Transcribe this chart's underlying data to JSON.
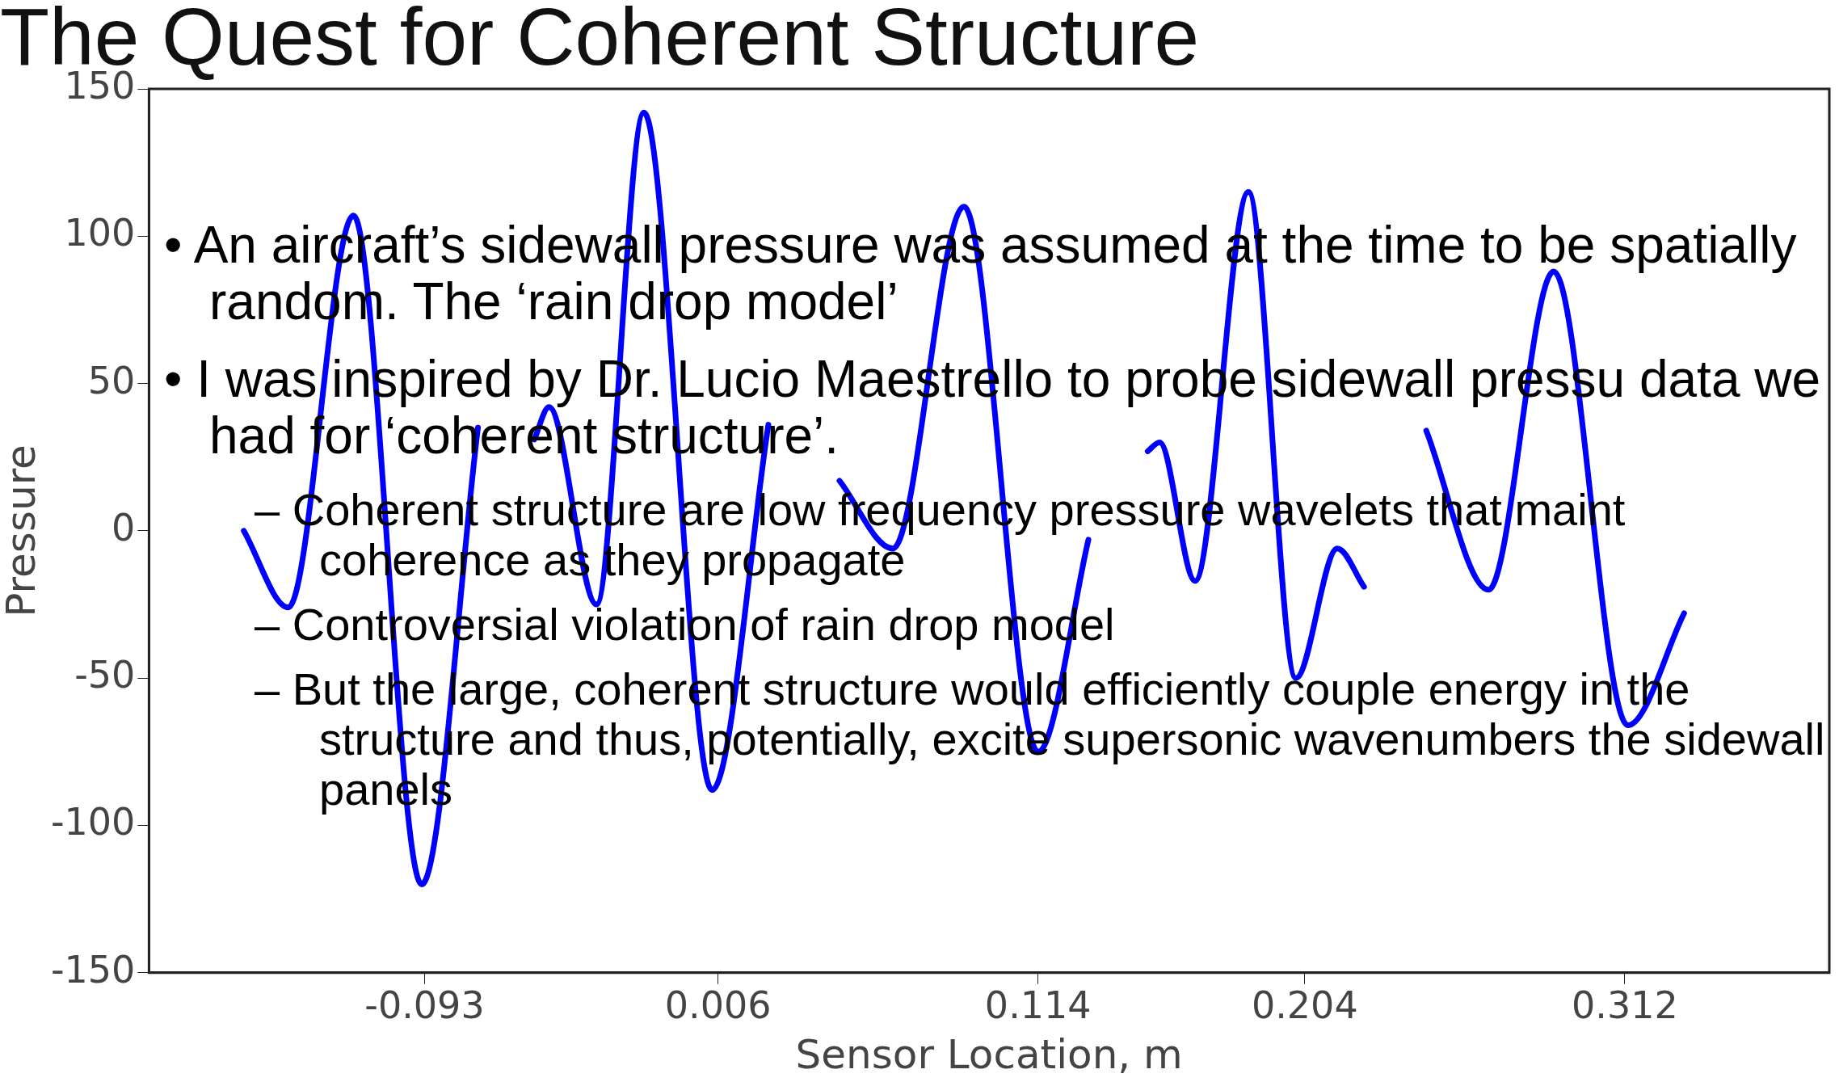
{
  "chart_data": {
    "type": "line",
    "title": "The Quest for Coherent Structure",
    "xlabel": "Sensor Location, m",
    "ylabel": "Pressure",
    "annotations": [
      "• An aircraft’s sidewall pressure was assumed at the time to be spatially random.  The ‘rain drop model’",
      "• I was inspired by Dr. Lucio Maestrello to probe sidewall pressu data we had for ‘coherent structure’.",
      "– Coherent structure are low frequency pressure wavelets that maint coherence as they propagate",
      "– Controversial violation of rain drop model",
      "– But the large, coherent structure would efficiently couple energy in the structure and thus, potentially, excite supersonic wavenumbers the sidewall panels"
    ],
    "xlim": [
      -0.186,
      0.381
    ],
    "xticks": [
      {
        "value": -0.093,
        "label": "-0.093"
      },
      {
        "value": 0.006,
        "label": "0.006"
      },
      {
        "value": 0.114,
        "label": "0.114"
      },
      {
        "value": 0.204,
        "label": "0.204"
      },
      {
        "value": 0.312,
        "label": "0.312"
      }
    ],
    "ylim": [
      -150,
      150
    ],
    "yticks": [
      -150,
      -100,
      -50,
      0,
      50,
      100,
      150
    ],
    "grid": false,
    "legend": false,
    "marker": "none",
    "line_style": "solid",
    "series": [
      {
        "color": "#0000ff",
        "x": [
          -0.154,
          -0.139,
          -0.117,
          -0.094,
          -0.075
        ],
        "values": [
          0,
          -26,
          107,
          -120,
          35
        ]
      },
      {
        "color": "#0000ff",
        "x": [
          -0.056,
          -0.051,
          -0.035,
          -0.019,
          0.004,
          0.023
        ],
        "values": [
          31,
          42,
          -25,
          142,
          -88,
          36
        ]
      },
      {
        "color": "#0000ff",
        "x": [
          0.047,
          0.065,
          0.089,
          0.114,
          0.131
        ],
        "values": [
          17,
          -6,
          110,
          -75,
          -3
        ]
      },
      {
        "color": "#0000ff",
        "x": [
          0.151,
          0.155,
          0.167,
          0.185,
          0.201,
          0.215,
          0.224
        ],
        "values": [
          27,
          30,
          -17,
          115,
          -50,
          -6,
          -19
        ]
      },
      {
        "color": "#0000ff",
        "x": [
          0.245,
          0.266,
          0.288,
          0.313,
          0.332
        ],
        "values": [
          34,
          -20,
          88,
          -66,
          -28
        ]
      }
    ]
  }
}
